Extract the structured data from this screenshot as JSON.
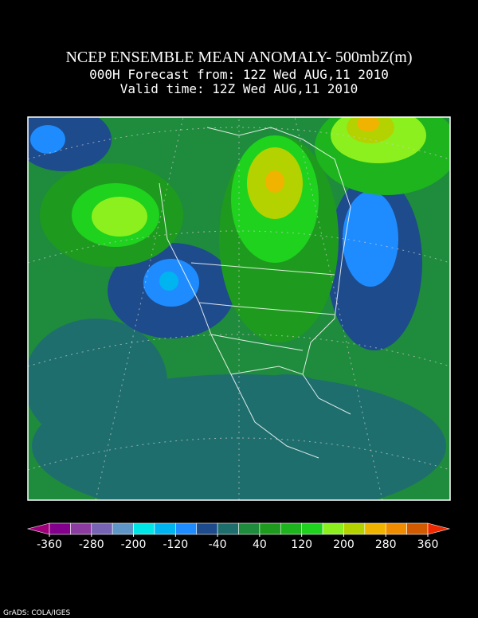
{
  "header": {
    "title": "NCEP ENSEMBLE MEAN ANOMALY- 500mbZ(m)",
    "forecast_line": "000H Forecast from: 12Z Wed AUG,11 2010",
    "valid_line": "Valid time: 12Z Wed AUG,11 2010"
  },
  "colorbar": {
    "clim": [
      -360,
      360
    ],
    "ticks": [
      -360,
      -280,
      -200,
      -120,
      -40,
      40,
      120,
      200,
      280,
      360
    ],
    "colors": [
      "#a0007a",
      "#82008c",
      "#8c3ca0",
      "#7864b4",
      "#5f96c8",
      "#00e6e6",
      "#00b4f0",
      "#1e8cff",
      "#1e4b8c",
      "#1e6e6e",
      "#1e8c3c",
      "#1e9b1e",
      "#1eb41e",
      "#1ed21e",
      "#8cf01e",
      "#b4d200",
      "#f0b400",
      "#f08c00",
      "#d25a00",
      "#f02800"
    ]
  },
  "footer": {
    "credit": "GrADS: COLA/IGES"
  }
}
